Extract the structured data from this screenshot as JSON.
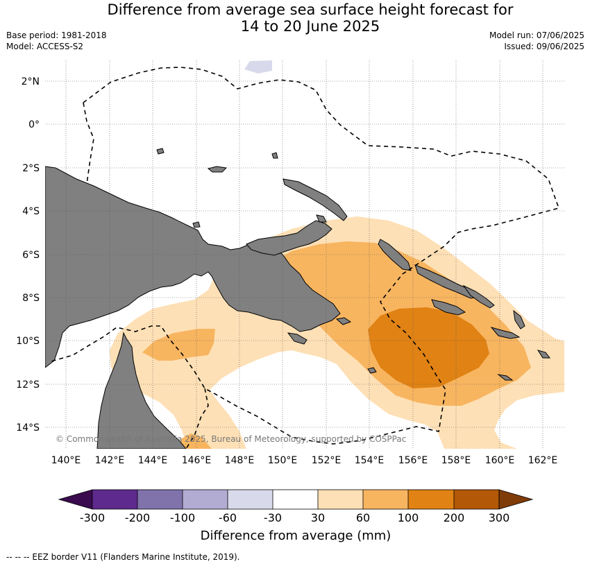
{
  "header": {
    "title_line1": "Difference from average sea surface height forecast for",
    "title_line2": "14 to 20 June 2025",
    "base_period": "Base period: 1981-2018",
    "model": "Model: ACCESS-S2",
    "model_run": "Model run: 07/06/2025",
    "issued": "Issued: 09/06/2025"
  },
  "map": {
    "lat_labels": [
      "2°N",
      "0°",
      "2°S",
      "4°S",
      "6°S",
      "8°S",
      "10°S",
      "12°S",
      "14°S"
    ],
    "lon_labels": [
      "140°E",
      "142°E",
      "144°E",
      "146°E",
      "148°E",
      "150°E",
      "152°E",
      "154°E",
      "156°E",
      "158°E",
      "160°E",
      "162°E"
    ],
    "copyright": "© Commonwealth of Australia 2025, Bureau of Meteorology, supported by COSPPac",
    "land_color": "#808080",
    "eez_line": "dashed"
  },
  "colorbar": {
    "label": "Difference from average (mm)",
    "ticks": [
      "-300",
      "-200",
      "-100",
      "-60",
      "-30",
      "30",
      "60",
      "100",
      "200",
      "300"
    ],
    "colors": [
      "#3b0b4f",
      "#5e2a8e",
      "#8073ac",
      "#b2abd2",
      "#d8daeb",
      "#ffffff",
      "#fee0b6",
      "#f8b560",
      "#e08214",
      "#b35806",
      "#7f3b08"
    ]
  },
  "legend": {
    "eez": "--  --  -- EEZ border V11 (Flanders Marine Institute, 2019)."
  }
}
